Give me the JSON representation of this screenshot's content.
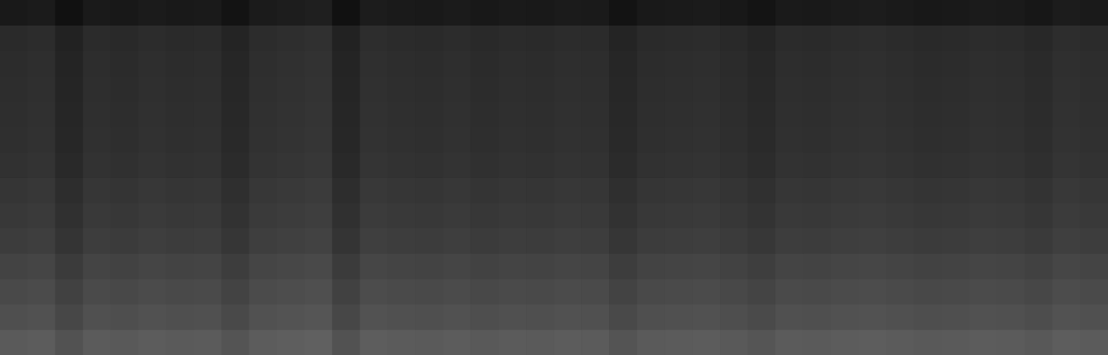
{
  "chart_data": {
    "type": "heatmap",
    "tick_labels": false,
    "grid": false,
    "cells": [
      [
        25,
        27,
        17,
        26,
        24,
        27,
        25,
        26,
        19,
        27,
        29,
        31,
        17,
        28,
        26,
        25,
        27,
        24,
        26,
        25,
        27,
        26,
        19,
        25,
        26,
        27,
        24,
        20,
        26,
        25,
        27,
        28,
        26,
        24,
        25,
        27,
        26,
        23,
        28,
        26
      ],
      [
        42,
        44,
        34,
        43,
        41,
        44,
        42,
        43,
        36,
        44,
        46,
        48,
        34,
        45,
        43,
        42,
        44,
        41,
        43,
        42,
        44,
        43,
        36,
        42,
        43,
        44,
        41,
        37,
        43,
        42,
        44,
        45,
        43,
        41,
        42,
        44,
        43,
        40,
        45,
        43
      ],
      [
        44,
        46,
        36,
        45,
        43,
        46,
        44,
        45,
        38,
        46,
        48,
        50,
        36,
        47,
        45,
        44,
        46,
        43,
        45,
        44,
        46,
        45,
        38,
        44,
        45,
        46,
        43,
        39,
        45,
        44,
        46,
        47,
        45,
        43,
        44,
        46,
        45,
        42,
        47,
        45
      ],
      [
        45,
        47,
        37,
        46,
        44,
        47,
        45,
        46,
        39,
        47,
        49,
        51,
        37,
        48,
        46,
        45,
        47,
        44,
        46,
        45,
        47,
        46,
        39,
        45,
        46,
        47,
        44,
        40,
        46,
        45,
        47,
        48,
        46,
        44,
        45,
        47,
        46,
        43,
        48,
        46
      ],
      [
        46,
        48,
        38,
        47,
        45,
        48,
        46,
        47,
        40,
        48,
        50,
        52,
        38,
        49,
        47,
        46,
        48,
        45,
        47,
        46,
        48,
        47,
        40,
        46,
        47,
        48,
        45,
        41,
        47,
        46,
        48,
        49,
        47,
        45,
        46,
        48,
        47,
        44,
        49,
        47
      ],
      [
        47,
        49,
        39,
        48,
        46,
        49,
        47,
        48,
        41,
        49,
        51,
        53,
        39,
        50,
        48,
        47,
        49,
        46,
        48,
        47,
        49,
        48,
        41,
        47,
        48,
        49,
        46,
        42,
        48,
        47,
        49,
        50,
        48,
        46,
        47,
        49,
        48,
        45,
        50,
        48
      ],
      [
        49,
        51,
        41,
        50,
        48,
        51,
        49,
        50,
        43,
        51,
        53,
        55,
        41,
        52,
        50,
        49,
        51,
        48,
        50,
        49,
        51,
        50,
        43,
        49,
        50,
        51,
        48,
        44,
        50,
        49,
        51,
        52,
        50,
        48,
        49,
        51,
        50,
        47,
        52,
        50
      ],
      [
        53,
        55,
        45,
        54,
        52,
        55,
        53,
        54,
        47,
        55,
        57,
        59,
        45,
        56,
        54,
        53,
        55,
        52,
        54,
        53,
        55,
        54,
        47,
        53,
        54,
        55,
        52,
        48,
        54,
        53,
        55,
        56,
        54,
        52,
        53,
        55,
        54,
        51,
        56,
        54
      ],
      [
        56,
        58,
        48,
        57,
        55,
        58,
        56,
        57,
        50,
        58,
        60,
        62,
        48,
        59,
        57,
        56,
        58,
        55,
        57,
        56,
        58,
        57,
        50,
        56,
        57,
        58,
        55,
        51,
        57,
        56,
        58,
        59,
        57,
        55,
        56,
        58,
        57,
        54,
        59,
        57
      ],
      [
        60,
        62,
        52,
        61,
        59,
        62,
        60,
        61,
        54,
        62,
        64,
        66,
        52,
        63,
        61,
        60,
        62,
        59,
        61,
        60,
        62,
        61,
        54,
        60,
        61,
        62,
        59,
        55,
        61,
        60,
        62,
        63,
        61,
        59,
        60,
        62,
        61,
        58,
        63,
        61
      ],
      [
        67,
        69,
        59,
        68,
        66,
        69,
        67,
        68,
        61,
        69,
        71,
        73,
        59,
        70,
        68,
        67,
        69,
        66,
        68,
        67,
        69,
        68,
        61,
        67,
        68,
        69,
        66,
        62,
        68,
        67,
        69,
        70,
        68,
        66,
        67,
        69,
        68,
        65,
        70,
        68
      ],
      [
        73,
        75,
        65,
        74,
        72,
        75,
        73,
        74,
        67,
        75,
        77,
        79,
        65,
        76,
        74,
        73,
        75,
        72,
        74,
        73,
        75,
        74,
        67,
        73,
        74,
        75,
        72,
        68,
        74,
        73,
        75,
        76,
        74,
        72,
        73,
        75,
        74,
        71,
        76,
        74
      ],
      [
        79,
        81,
        71,
        80,
        78,
        81,
        79,
        80,
        73,
        81,
        83,
        85,
        71,
        82,
        80,
        79,
        81,
        78,
        80,
        79,
        81,
        80,
        73,
        79,
        80,
        81,
        78,
        74,
        80,
        79,
        81,
        82,
        80,
        78,
        79,
        81,
        80,
        77,
        82,
        80
      ],
      [
        90,
        92,
        82,
        91,
        89,
        92,
        90,
        91,
        84,
        92,
        94,
        96,
        82,
        93,
        91,
        90,
        92,
        89,
        91,
        90,
        92,
        91,
        84,
        90,
        91,
        92,
        89,
        85,
        91,
        90,
        92,
        93,
        91,
        89,
        90,
        92,
        91,
        88,
        93,
        91
      ]
    ]
  }
}
